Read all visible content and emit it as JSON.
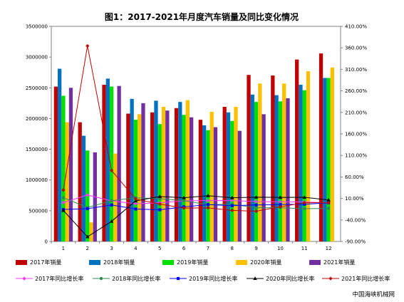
{
  "chart_data": {
    "type": "bar",
    "title": "图1：2017-2021年月度汽车销量及同比变化情况",
    "source": "中国海峡机械网",
    "categories": [
      "1",
      "2",
      "3",
      "4",
      "5",
      "6",
      "7",
      "8",
      "9",
      "10",
      "11",
      "12"
    ],
    "y_left": {
      "min": 0,
      "max": 3500000,
      "step": 500000,
      "ticks": [
        "0",
        "500000",
        "1000000",
        "1500000",
        "2000000",
        "2500000",
        "3000000",
        "3500000"
      ]
    },
    "y_right": {
      "min": -90,
      "max": 410,
      "step": 50,
      "ticks": [
        "-90.00%",
        "-40.00%",
        "10.00%",
        "60.00%",
        "110.00%",
        "160.00%",
        "210.00%",
        "260.00%",
        "310.00%",
        "360.00%",
        "410.00%"
      ]
    },
    "bar_series": [
      {
        "name": "2017年销量",
        "color": "#c00000",
        "values": [
          2520000,
          1940000,
          2550000,
          2080000,
          2100000,
          2170000,
          1980000,
          2190000,
          2710000,
          2700000,
          2960000,
          3060000
        ]
      },
      {
        "name": "2018年销量",
        "color": "#0070c0",
        "values": [
          2810000,
          1720000,
          2650000,
          2320000,
          2290000,
          2270000,
          1890000,
          2100000,
          2390000,
          2380000,
          2550000,
          2660000
        ]
      },
      {
        "name": "2019年销量",
        "color": "#00e000",
        "values": [
          2370000,
          1480000,
          2520000,
          1980000,
          1910000,
          2060000,
          1810000,
          1960000,
          2270000,
          2280000,
          2460000,
          2660000
        ]
      },
      {
        "name": "2020年销量",
        "color": "#ffc000",
        "values": [
          1940000,
          310000,
          1430000,
          2070000,
          2190000,
          2300000,
          2110000,
          2190000,
          2570000,
          2570000,
          2770000,
          2830000
        ]
      },
      {
        "name": "2021年销量",
        "color": "#7030a0",
        "values": [
          2500000,
          1450000,
          2530000,
          2250000,
          2130000,
          2020000,
          1860000,
          1800000,
          2070000,
          2330000,
          0,
          0
        ]
      }
    ],
    "line_series": [
      {
        "name": "2017年同比增长率",
        "color": "#ff33ff",
        "marker": "diamond",
        "values": [
          0.2,
          18,
          4.3,
          -2.3,
          -0.1,
          4.5,
          5.0,
          5.3,
          2.8,
          2.0,
          1.8,
          -0.5
        ]
      },
      {
        "name": "2018年同比增长率",
        "color": "#2e8b57",
        "marker": "circle",
        "values": [
          11.6,
          -11.1,
          4.7,
          11.5,
          9.6,
          4.8,
          -4.6,
          -3.8,
          -11.6,
          -11.7,
          -13.9,
          -13.0
        ]
      },
      {
        "name": "2019年同比增长率",
        "color": "#0000ff",
        "marker": "square",
        "values": [
          -15.8,
          -13.8,
          -5.2,
          -14.6,
          -16.4,
          -9.6,
          -4.3,
          -6.9,
          -5.2,
          -4.1,
          -3.6,
          0.1
        ]
      },
      {
        "name": "2020年同比增长率",
        "color": "#000000",
        "marker": "triangle",
        "values": [
          -18.0,
          -79.1,
          -43.3,
          4.4,
          14.5,
          11.6,
          16.4,
          11.6,
          12.8,
          12.5,
          12.6,
          6.4
        ]
      },
      {
        "name": "2021年同比增长率",
        "color": "#c00000",
        "marker": "diamond",
        "values": [
          29.5,
          364.5,
          75.0,
          8.6,
          -3.1,
          -12.4,
          -11.9,
          -17.8,
          -19.6,
          -9.4,
          0,
          0
        ]
      }
    ],
    "grid": false,
    "legend_position": "bottom"
  }
}
